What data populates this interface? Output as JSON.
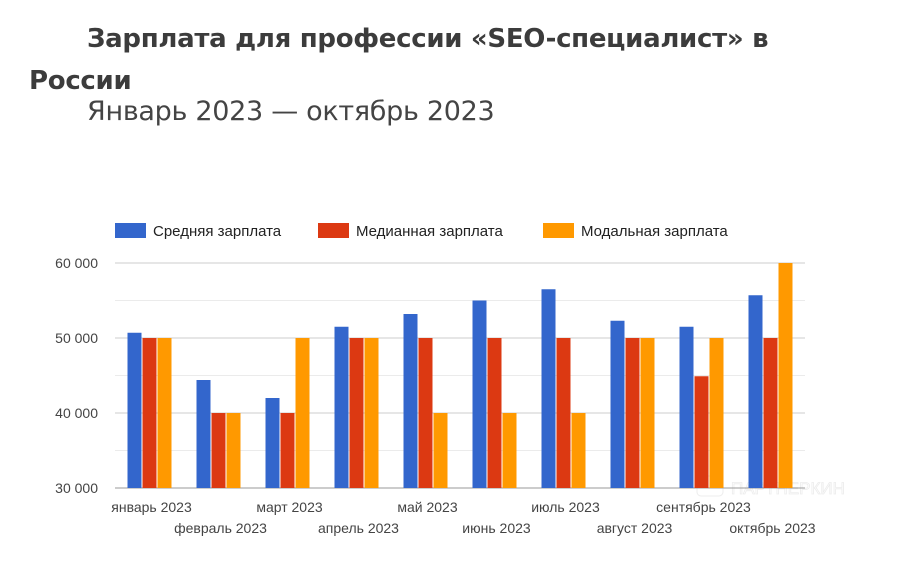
{
  "header": {
    "title": "Зарплата для профессии «SEO-специалист» в России",
    "subtitle": "Январь 2023 — октябрь 2023"
  },
  "watermark": "ПАРТНЕРКИН",
  "chart_data": {
    "type": "bar",
    "title": "Зарплата для профессии «SEO-специалист» в России",
    "subtitle": "Январь 2023 — октябрь 2023",
    "xlabel": "",
    "ylabel": "",
    "categories": [
      "январь 2023",
      "февраль 2023",
      "март 2023",
      "апрель 2023",
      "май 2023",
      "июнь 2023",
      "июль 2023",
      "август 2023",
      "сентябрь 2023",
      "октябрь 2023"
    ],
    "series": [
      {
        "name": "Средняя зарплата",
        "color": "#3366cc",
        "values": [
          50700,
          44400,
          42000,
          51500,
          53200,
          55000,
          56500,
          52300,
          51500,
          55700
        ]
      },
      {
        "name": "Медианная зарплата",
        "color": "#dc3912",
        "values": [
          50000,
          40000,
          40000,
          50000,
          50000,
          50000,
          50000,
          50000,
          44900,
          50000
        ]
      },
      {
        "name": "Модальная зарплата",
        "color": "#ff9900",
        "values": [
          50000,
          40000,
          50000,
          50000,
          40000,
          40000,
          40000,
          50000,
          50000,
          60000
        ]
      }
    ],
    "ylim": [
      30000,
      60000
    ],
    "yticks": [
      30000,
      40000,
      50000,
      60000
    ],
    "ytick_labels": [
      "30 000",
      "40 000",
      "50 000",
      "60 000"
    ],
    "minor_gridlines": [
      35000,
      45000,
      55000
    ],
    "grid": true,
    "legend_position": "top-left"
  }
}
